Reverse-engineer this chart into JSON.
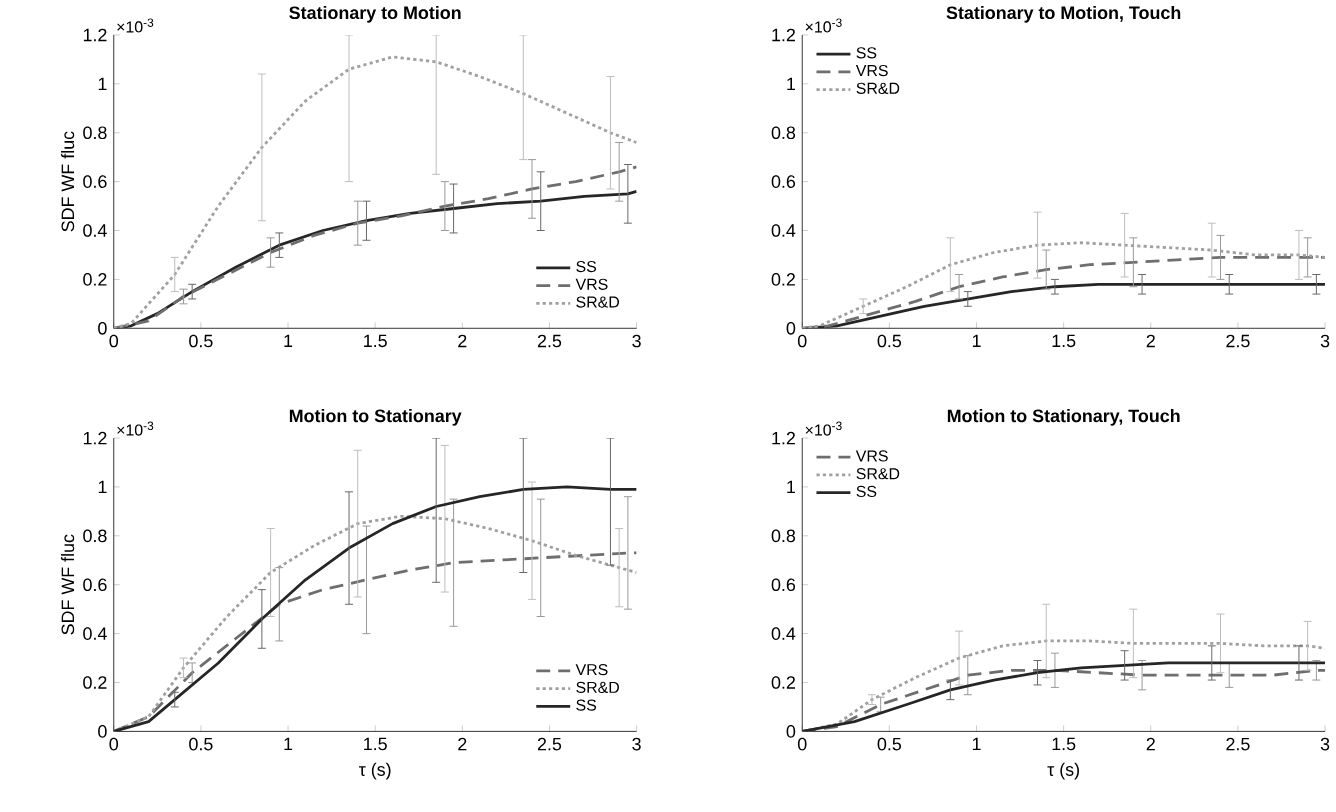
{
  "chart_data": [
    {
      "type": "line",
      "title": "Stationary to Motion",
      "ylabel": "SDF WF fluc",
      "annotations": [
        "×10$^{-3}$"
      ],
      "xlim": [
        0,
        3
      ],
      "ylim": [
        0,
        1.2
      ],
      "xticks": [
        0,
        0.5,
        1,
        1.5,
        2,
        2.5,
        3
      ],
      "yticks": [
        0,
        0.2,
        0.4,
        0.6,
        0.8,
        1,
        1.2
      ],
      "legend": "bottom right",
      "marker": "none",
      "series": [
        {
          "name": "SS",
          "color": "#262626",
          "line_style": "solid",
          "x": [
            0,
            0.1,
            0.25,
            0.45,
            0.7,
            0.95,
            1.2,
            1.45,
            1.7,
            1.95,
            2.2,
            2.45,
            2.7,
            2.95,
            3
          ],
          "values": [
            0,
            0.01,
            0.06,
            0.15,
            0.25,
            0.34,
            0.4,
            0.44,
            0.47,
            0.49,
            0.51,
            0.52,
            0.54,
            0.55,
            0.56
          ],
          "errors": [
            null,
            null,
            null,
            0.03,
            null,
            0.05,
            null,
            0.08,
            null,
            0.1,
            null,
            0.12,
            null,
            0.12,
            null
          ]
        },
        {
          "name": "VRS",
          "color": "#6e6e6e",
          "line_style": "dashed",
          "x": [
            0,
            0.2,
            0.4,
            0.65,
            0.9,
            1.15,
            1.4,
            1.65,
            1.9,
            2.15,
            2.4,
            2.65,
            2.9,
            3
          ],
          "values": [
            0,
            0.03,
            0.13,
            0.22,
            0.31,
            0.38,
            0.43,
            0.46,
            0.5,
            0.53,
            0.57,
            0.6,
            0.64,
            0.66
          ],
          "errors": [
            null,
            null,
            0.03,
            null,
            0.06,
            null,
            0.09,
            null,
            0.1,
            null,
            0.12,
            null,
            0.12,
            null
          ]
        },
        {
          "name": "SR&D",
          "color": "#a0a0a0",
          "line_style": "dotted",
          "x": [
            0,
            0.1,
            0.35,
            0.6,
            0.85,
            1.1,
            1.35,
            1.6,
            1.85,
            2.1,
            2.35,
            2.6,
            2.85,
            3
          ],
          "values": [
            0,
            0.02,
            0.22,
            0.5,
            0.74,
            0.93,
            1.06,
            1.11,
            1.09,
            1.03,
            0.96,
            0.88,
            0.8,
            0.76
          ],
          "errors": [
            null,
            null,
            0.07,
            null,
            0.3,
            null,
            [
              0.6,
              1.2
            ],
            null,
            [
              0.63,
              1.2
            ],
            null,
            [
              0.69,
              1.2
            ],
            null,
            0.23,
            null
          ]
        }
      ]
    },
    {
      "type": "line",
      "title": "Stationary to Motion, Touch",
      "annotations": [
        "×10$^{-3}$"
      ],
      "xlim": [
        0,
        3
      ],
      "ylim": [
        0,
        1.2
      ],
      "xticks": [
        0,
        0.5,
        1,
        1.5,
        2,
        2.5,
        3
      ],
      "yticks": [
        0,
        0.2,
        0.4,
        0.6,
        0.8,
        1,
        1.2
      ],
      "legend": "top left",
      "marker": "none",
      "series": [
        {
          "name": "SS",
          "color": "#262626",
          "line_style": "solid",
          "x": [
            0,
            0.2,
            0.45,
            0.7,
            0.95,
            1.2,
            1.45,
            1.7,
            1.95,
            2.2,
            2.45,
            2.7,
            2.95,
            3
          ],
          "values": [
            0,
            0.01,
            0.05,
            0.09,
            0.12,
            0.15,
            0.17,
            0.18,
            0.18,
            0.18,
            0.18,
            0.18,
            0.18,
            0.18
          ],
          "errors": [
            null,
            null,
            null,
            null,
            0.03,
            null,
            0.03,
            null,
            0.04,
            null,
            0.04,
            null,
            0.04,
            null
          ]
        },
        {
          "name": "VRS",
          "color": "#6e6e6e",
          "line_style": "dashed",
          "x": [
            0,
            0.15,
            0.4,
            0.65,
            0.9,
            1.15,
            1.4,
            1.65,
            1.9,
            2.15,
            2.4,
            2.65,
            2.9,
            3
          ],
          "values": [
            0,
            0.01,
            0.06,
            0.11,
            0.17,
            0.21,
            0.24,
            0.26,
            0.27,
            0.28,
            0.29,
            0.29,
            0.29,
            0.29
          ],
          "errors": [
            null,
            null,
            null,
            null,
            0.05,
            null,
            0.08,
            null,
            0.1,
            null,
            0.09,
            null,
            0.08,
            null
          ]
        },
        {
          "name": "SR&D",
          "color": "#a0a0a0",
          "line_style": "dotted",
          "x": [
            0,
            0.1,
            0.35,
            0.6,
            0.85,
            1.1,
            1.35,
            1.6,
            1.85,
            2.1,
            2.35,
            2.6,
            2.85,
            3
          ],
          "values": [
            0,
            0.01,
            0.09,
            0.17,
            0.26,
            0.31,
            0.34,
            0.35,
            0.34,
            0.33,
            0.32,
            0.3,
            0.3,
            0.29
          ],
          "errors": [
            null,
            null,
            0.03,
            null,
            0.11,
            null,
            0.135,
            null,
            0.13,
            null,
            0.11,
            null,
            0.1,
            null
          ]
        }
      ]
    },
    {
      "type": "line",
      "title": "Motion to Stationary",
      "xlabel": "τ (s)",
      "ylabel": "SDF WF fluc",
      "annotations": [
        "×10$^{-3}$"
      ],
      "xlim": [
        0,
        3
      ],
      "ylim": [
        0,
        1.2
      ],
      "xticks": [
        0,
        0.5,
        1,
        1.5,
        2,
        2.5,
        3
      ],
      "yticks": [
        0,
        0.2,
        0.4,
        0.6,
        0.8,
        1,
        1.2
      ],
      "legend": "bottom right",
      "marker": "none",
      "series": [
        {
          "name": "VRS",
          "color": "#6e6e6e",
          "line_style": "dashed",
          "x": [
            0,
            0.2,
            0.45,
            0.7,
            0.95,
            1.2,
            1.45,
            1.7,
            1.95,
            2.2,
            2.45,
            2.7,
            2.95,
            3
          ],
          "values": [
            0,
            0.06,
            0.24,
            0.38,
            0.52,
            0.58,
            0.62,
            0.66,
            0.69,
            0.7,
            0.71,
            0.72,
            0.73,
            0.73
          ],
          "errors": [
            null,
            null,
            0.04,
            null,
            0.15,
            null,
            0.22,
            null,
            0.26,
            null,
            0.24,
            null,
            0.23,
            null
          ]
        },
        {
          "name": "SR&D",
          "color": "#a0a0a0",
          "line_style": "dotted",
          "x": [
            0,
            0.2,
            0.4,
            0.65,
            0.9,
            1.15,
            1.4,
            1.65,
            1.9,
            2.15,
            2.4,
            2.65,
            2.9,
            3
          ],
          "values": [
            0,
            0.06,
            0.26,
            0.47,
            0.65,
            0.76,
            0.85,
            0.88,
            0.87,
            0.83,
            0.78,
            0.72,
            0.67,
            0.65
          ],
          "errors": [
            null,
            null,
            0.04,
            null,
            0.18,
            null,
            0.3,
            null,
            0.3,
            null,
            0.24,
            null,
            0.16,
            null
          ]
        },
        {
          "name": "SS",
          "color": "#262626",
          "line_style": "solid",
          "x": [
            0,
            0.2,
            0.35,
            0.6,
            0.85,
            1.1,
            1.35,
            1.6,
            1.85,
            2.1,
            2.35,
            2.6,
            2.85,
            3
          ],
          "values": [
            0,
            0.04,
            0.13,
            0.28,
            0.46,
            0.62,
            0.75,
            0.85,
            0.92,
            0.96,
            0.99,
            1.0,
            0.99,
            0.99
          ],
          "errors": [
            null,
            null,
            0.03,
            null,
            0.12,
            null,
            0.23,
            null,
            [
              0.61,
              1.2
            ],
            null,
            [
              0.65,
              1.2
            ],
            null,
            [
              0.68,
              1.2
            ],
            null
          ]
        }
      ]
    },
    {
      "type": "line",
      "title": "Motion to Stationary, Touch",
      "xlabel": "τ (s)",
      "annotations": [
        "×10$^{-3}$"
      ],
      "xlim": [
        0,
        3
      ],
      "ylim": [
        0,
        1.2
      ],
      "xticks": [
        0,
        0.5,
        1,
        1.5,
        2,
        2.5,
        3
      ],
      "yticks": [
        0,
        0.2,
        0.4,
        0.6,
        0.8,
        1,
        1.2
      ],
      "legend": "top left",
      "marker": "none",
      "series": [
        {
          "name": "VRS",
          "color": "#6e6e6e",
          "line_style": "dashed",
          "x": [
            0,
            0.2,
            0.45,
            0.7,
            0.95,
            1.2,
            1.45,
            1.7,
            1.95,
            2.2,
            2.45,
            2.7,
            2.95,
            3
          ],
          "values": [
            0,
            0.02,
            0.11,
            0.17,
            0.23,
            0.25,
            0.25,
            0.24,
            0.23,
            0.23,
            0.23,
            0.23,
            0.25,
            0.25
          ],
          "errors": [
            null,
            null,
            0.03,
            null,
            0.08,
            null,
            0.07,
            null,
            0.06,
            null,
            0.05,
            null,
            0.04,
            null
          ]
        },
        {
          "name": "SR&D",
          "color": "#a0a0a0",
          "line_style": "dotted",
          "x": [
            0,
            0.2,
            0.4,
            0.65,
            0.9,
            1.15,
            1.4,
            1.65,
            1.9,
            2.15,
            2.4,
            2.65,
            2.9,
            3
          ],
          "values": [
            0,
            0.03,
            0.13,
            0.22,
            0.3,
            0.35,
            0.37,
            0.37,
            0.36,
            0.36,
            0.36,
            0.35,
            0.35,
            0.34
          ],
          "errors": [
            null,
            null,
            0.02,
            null,
            0.11,
            null,
            0.15,
            null,
            0.14,
            null,
            0.12,
            null,
            0.1,
            null
          ]
        },
        {
          "name": "SS",
          "color": "#262626",
          "line_style": "solid",
          "x": [
            0,
            0.3,
            0.6,
            0.85,
            1.1,
            1.35,
            1.6,
            1.85,
            2.1,
            2.35,
            2.6,
            2.85,
            3
          ],
          "values": [
            0,
            0.04,
            0.11,
            0.17,
            0.21,
            0.24,
            0.26,
            0.27,
            0.28,
            0.28,
            0.28,
            0.28,
            0.28
          ],
          "errors": [
            null,
            null,
            null,
            0.04,
            null,
            0.05,
            null,
            0.06,
            null,
            0.07,
            null,
            0.07,
            null
          ]
        }
      ]
    }
  ]
}
